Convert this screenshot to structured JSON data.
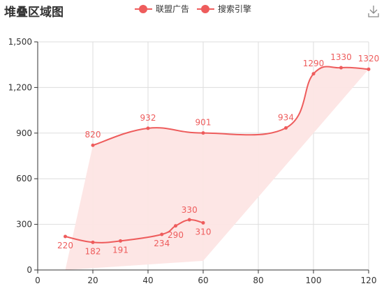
{
  "header": {
    "title": "堆叠区域图"
  },
  "toolbar": {
    "download_icon": "download-icon"
  },
  "colors": {
    "series": "#ee5c5c",
    "area": "#fde5e4",
    "grid": "#dddddd",
    "axis": "#333333",
    "text": "#333333"
  },
  "chart_data": {
    "type": "area",
    "title": "堆叠区域图",
    "xlabel": "",
    "ylabel": "",
    "xlim": [
      0,
      120
    ],
    "ylim": [
      0,
      1500
    ],
    "x_ticks": [
      0,
      20,
      40,
      60,
      80,
      100,
      120
    ],
    "y_ticks": [
      0,
      300,
      600,
      900,
      1200,
      1500
    ],
    "y_tick_labels": [
      "0",
      "300",
      "600",
      "900",
      "1,200",
      "1,500"
    ],
    "grid": true,
    "legend_position": "top-center",
    "series": [
      {
        "name": "联盟广告",
        "points": [
          [
            20,
            820
          ],
          [
            40,
            932
          ],
          [
            60,
            901
          ],
          [
            90,
            934
          ],
          [
            100,
            1290
          ],
          [
            110,
            1330
          ],
          [
            120,
            1320
          ]
        ]
      },
      {
        "name": "搜索引擎",
        "points": [
          [
            10,
            220
          ],
          [
            20,
            182
          ],
          [
            30,
            191
          ],
          [
            45,
            234
          ],
          [
            50,
            290
          ],
          [
            55,
            330
          ],
          [
            60,
            310
          ]
        ]
      }
    ]
  }
}
